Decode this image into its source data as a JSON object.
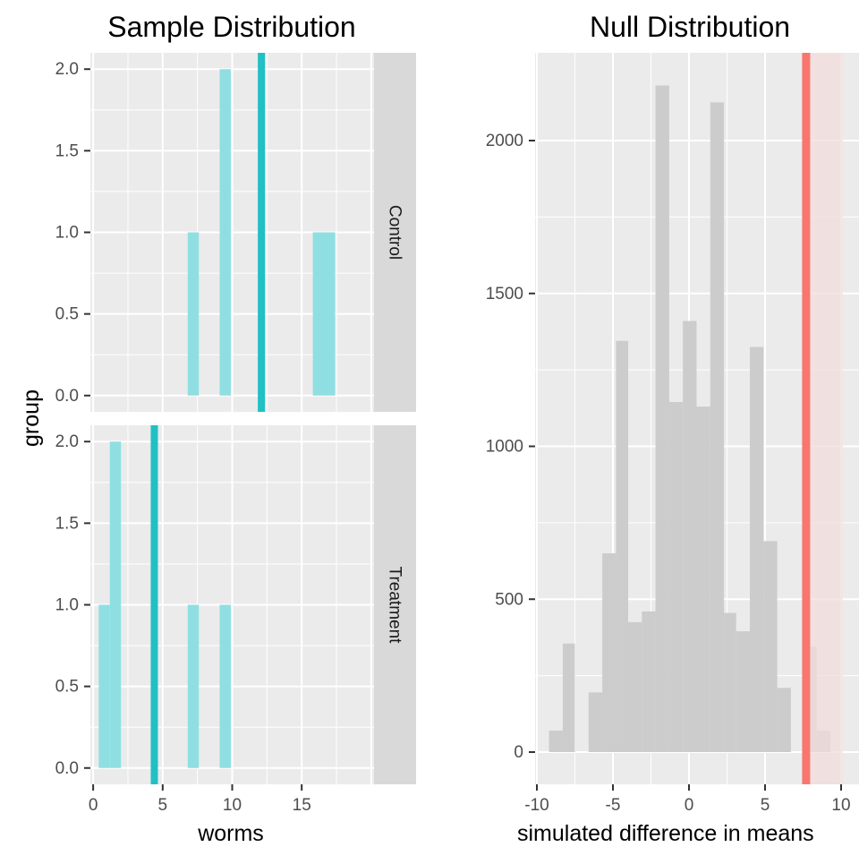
{
  "chart_data": [
    {
      "type": "bar",
      "title": "Sample Distribution",
      "xlabel": "worms",
      "ylabel": "group",
      "xlim": [
        -0.2,
        20.2
      ],
      "ylim": [
        -0.1,
        2.1
      ],
      "x_ticks": [
        "0",
        "5",
        "10",
        "15"
      ],
      "y_ticks": [
        "0.0",
        "0.5",
        "1.0",
        "1.5",
        "2.0"
      ],
      "grid": true,
      "bar_color": "#8fdfe2",
      "mean_line_color": "#20c0c4",
      "strip_color": "#d9d9d9",
      "panel_color": "#ebebeb",
      "facets": [
        {
          "label": "Control",
          "bars": [
            {
              "x0": 6.8,
              "x1": 7.6,
              "count": 1
            },
            {
              "x0": 9.1,
              "x1": 9.9,
              "count": 2
            },
            {
              "x0": 15.8,
              "x1": 17.4,
              "count": 1
            }
          ],
          "mean": 12.1
        },
        {
          "label": "Treatment",
          "bars": [
            {
              "x0": 0.4,
              "x1": 1.2,
              "count": 1
            },
            {
              "x0": 1.2,
              "x1": 2.0,
              "count": 2
            },
            {
              "x0": 6.8,
              "x1": 7.6,
              "count": 1
            },
            {
              "x0": 9.1,
              "x1": 9.9,
              "count": 1
            }
          ],
          "mean": 4.4
        }
      ]
    },
    {
      "type": "bar",
      "title": "Null Distribution",
      "xlabel": "simulated difference in means",
      "ylabel": "",
      "xlim": [
        -10.1,
        10.1
      ],
      "ylim": [
        -100,
        2290
      ],
      "x_ticks": [
        "-10",
        "-5",
        "0",
        "5",
        "10"
      ],
      "y_ticks": [
        "0",
        "500",
        "1000",
        "1500",
        "2000"
      ],
      "grid": true,
      "bar_color": "#cccccc",
      "observed_line_color": "#f8766d",
      "shade_color": "#f2dcdc",
      "panel_color": "#ebebeb",
      "bins": [
        {
          "x0": -9.2,
          "x1": -8.3,
          "count": 70
        },
        {
          "x0": -8.3,
          "x1": -7.5,
          "count": 355
        },
        {
          "x0": -6.6,
          "x1": -5.7,
          "count": 195
        },
        {
          "x0": -5.7,
          "x1": -4.8,
          "count": 650
        },
        {
          "x0": -4.8,
          "x1": -4.0,
          "count": 1345
        },
        {
          "x0": -4.0,
          "x1": -3.1,
          "count": 425
        },
        {
          "x0": -3.1,
          "x1": -2.2,
          "count": 460
        },
        {
          "x0": -2.2,
          "x1": -1.3,
          "count": 2180
        },
        {
          "x0": -1.3,
          "x1": -0.4,
          "count": 1145
        },
        {
          "x0": -0.4,
          "x1": 0.5,
          "count": 1410
        },
        {
          "x0": 0.5,
          "x1": 1.4,
          "count": 1130
        },
        {
          "x0": 1.4,
          "x1": 2.3,
          "count": 2125
        },
        {
          "x0": 2.3,
          "x1": 3.1,
          "count": 455
        },
        {
          "x0": 3.1,
          "x1": 4.0,
          "count": 395
        },
        {
          "x0": 4.0,
          "x1": 4.9,
          "count": 1325
        },
        {
          "x0": 4.9,
          "x1": 5.8,
          "count": 690
        },
        {
          "x0": 5.8,
          "x1": 6.7,
          "count": 210
        },
        {
          "x0": 7.6,
          "x1": 8.4,
          "count": 345
        },
        {
          "x0": 8.4,
          "x1": 9.3,
          "count": 70
        }
      ],
      "observed": 7.7,
      "shade_from": 7.7
    }
  ]
}
